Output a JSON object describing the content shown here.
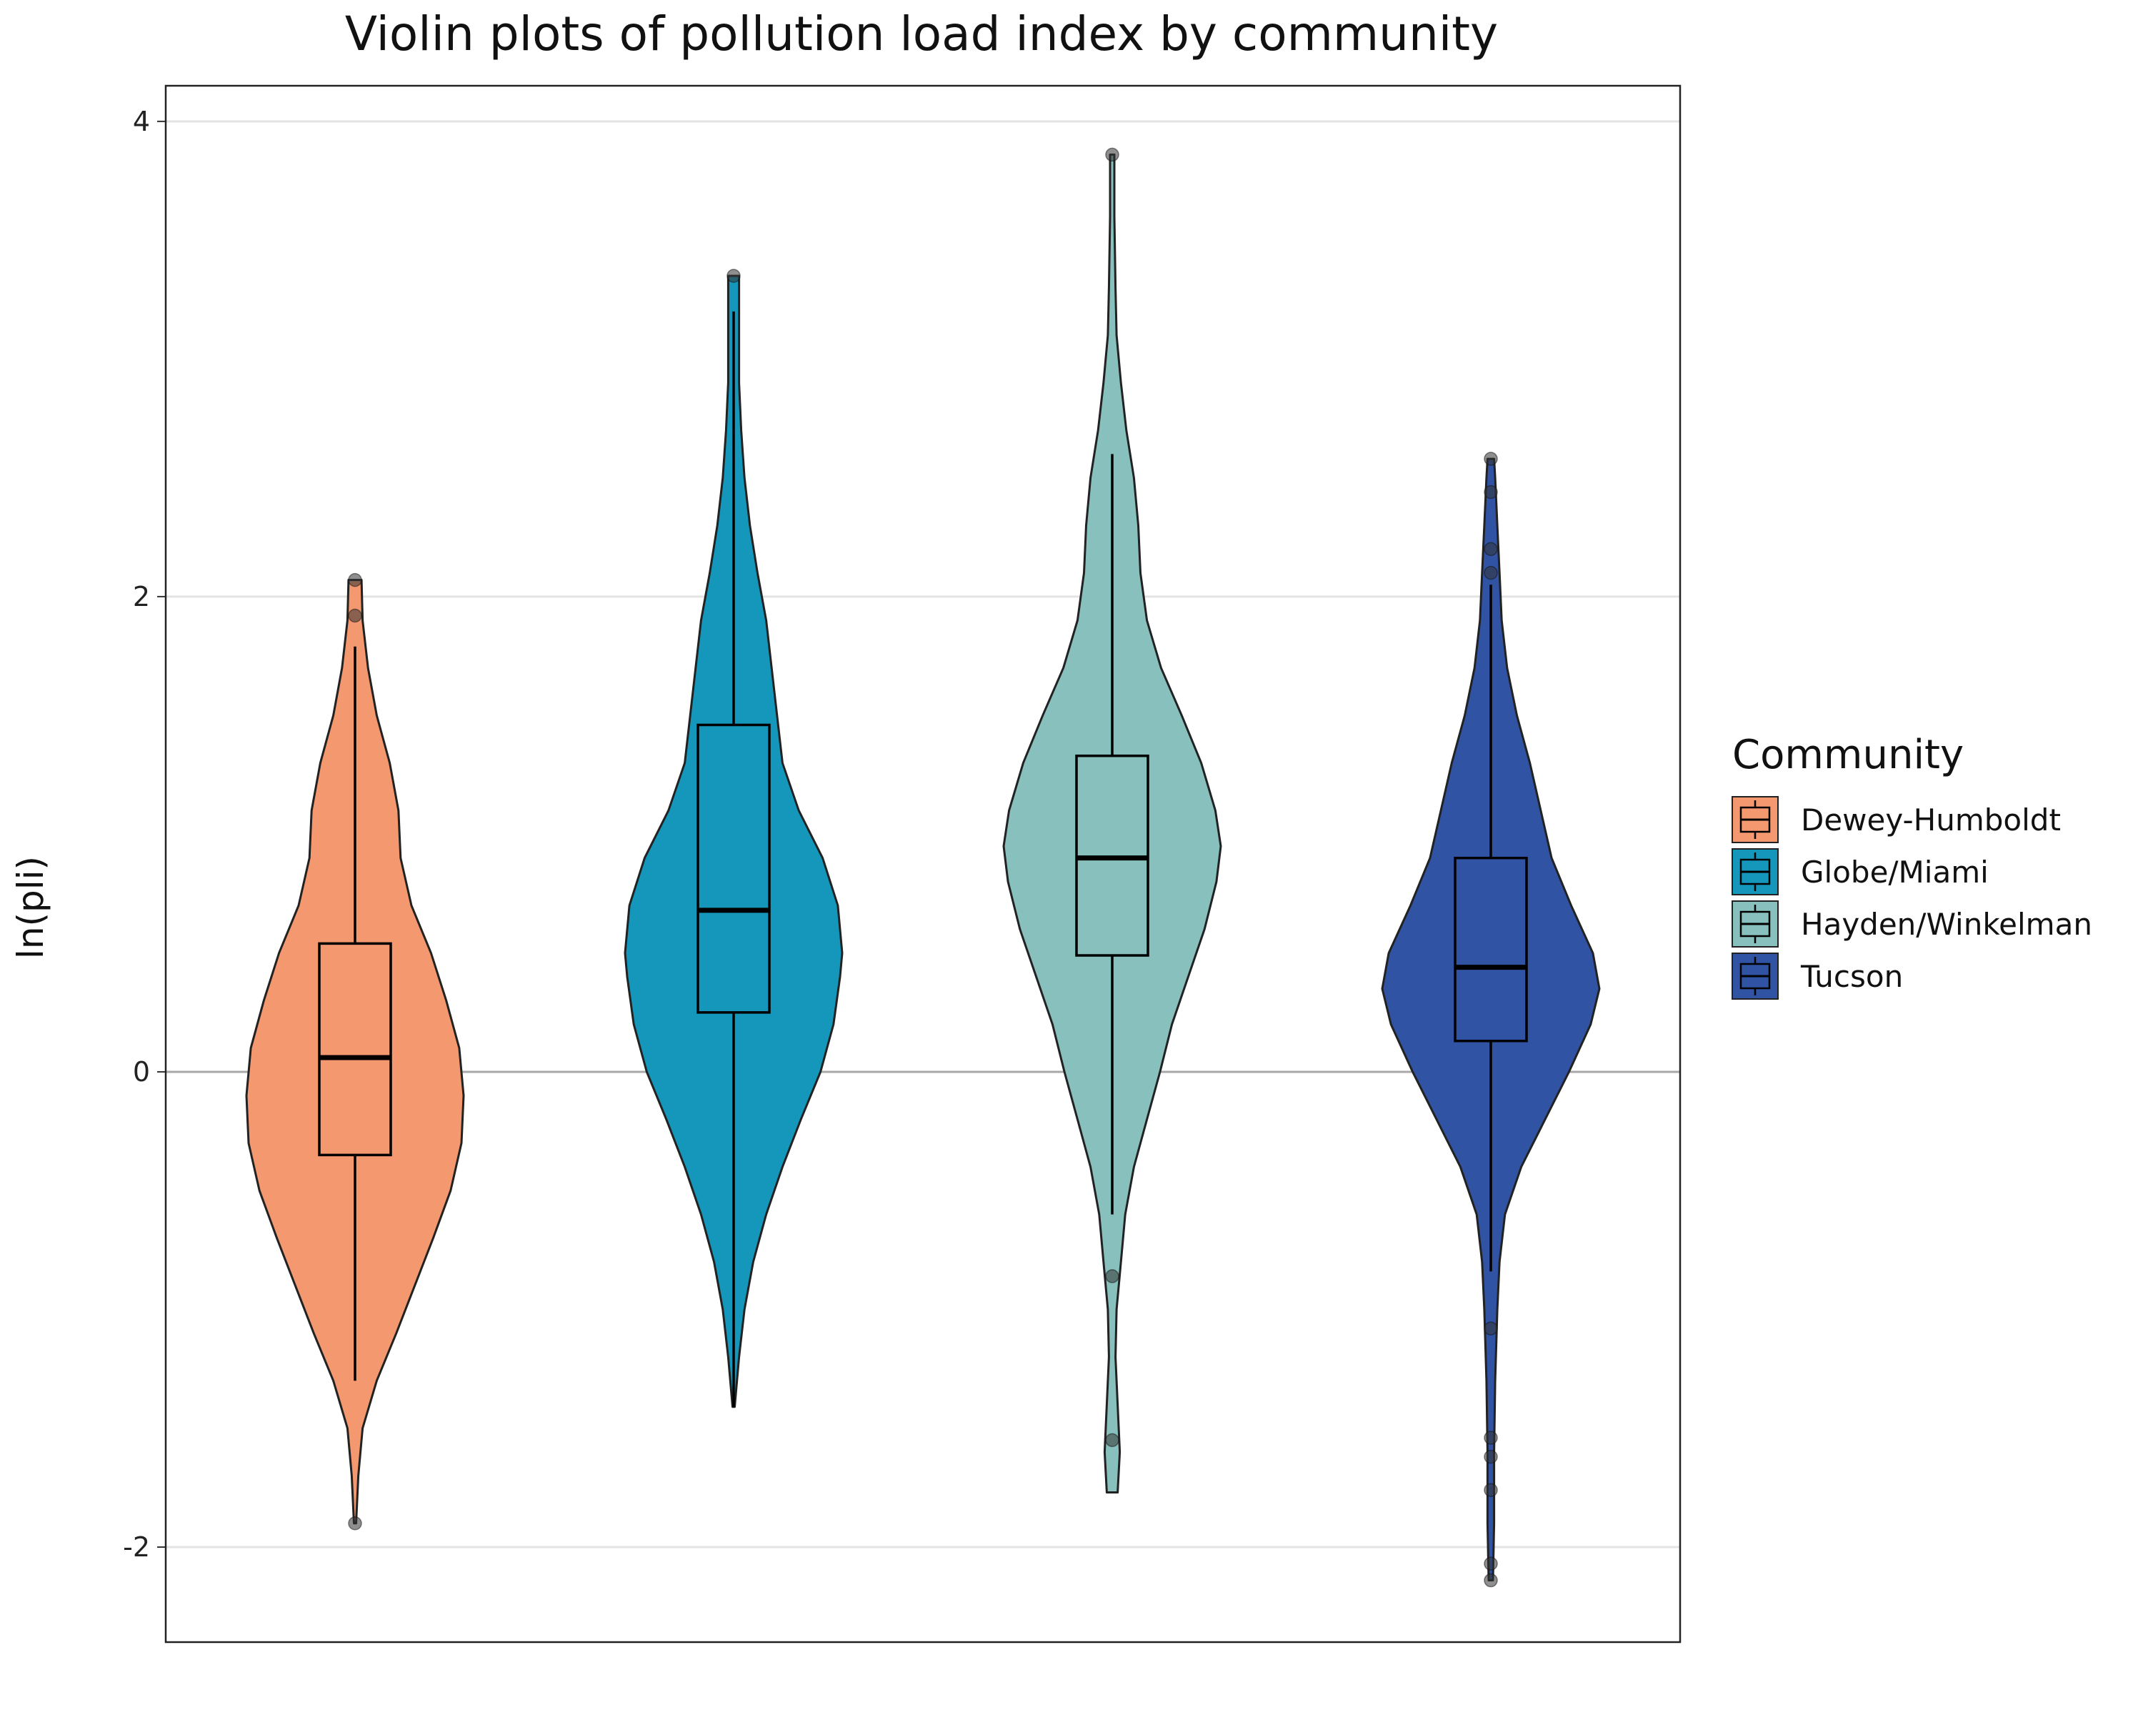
{
  "chart_data": {
    "type": "violin",
    "title": "Violin plots of pollution load index by community",
    "xlabel": "",
    "ylabel": "ln(pli)",
    "ylim": [
      -2.4,
      4.15
    ],
    "yticks": [
      -2,
      0,
      2,
      4
    ],
    "grid": true,
    "reference_line_y": 0,
    "legend": {
      "title": "Community",
      "position": "right"
    },
    "series": [
      {
        "name": "Dewey-Humboldt",
        "color": "#F4986F",
        "min": -1.9,
        "max": 2.07,
        "box": {
          "q1": -0.35,
          "median": 0.06,
          "q3": 0.54,
          "whisker_low": -1.3,
          "whisker_high": 1.79
        },
        "outliers": [
          2.07,
          1.92,
          -1.9
        ],
        "density": [
          [
            -1.9,
            0.01
          ],
          [
            -1.7,
            0.03
          ],
          [
            -1.5,
            0.07
          ],
          [
            -1.3,
            0.2
          ],
          [
            -1.1,
            0.38
          ],
          [
            -0.9,
            0.55
          ],
          [
            -0.7,
            0.72
          ],
          [
            -0.5,
            0.88
          ],
          [
            -0.3,
            0.98
          ],
          [
            -0.1,
            1.0
          ],
          [
            0.1,
            0.96
          ],
          [
            0.3,
            0.84
          ],
          [
            0.5,
            0.7
          ],
          [
            0.7,
            0.52
          ],
          [
            0.9,
            0.42
          ],
          [
            1.1,
            0.4
          ],
          [
            1.3,
            0.32
          ],
          [
            1.5,
            0.2
          ],
          [
            1.7,
            0.12
          ],
          [
            1.9,
            0.07
          ],
          [
            2.07,
            0.06
          ]
        ]
      },
      {
        "name": "Globe/Miami",
        "color": "#1597BB",
        "min": -1.41,
        "max": 3.35,
        "box": {
          "q1": 0.25,
          "median": 0.68,
          "q3": 1.46,
          "whisker_low": -1.41,
          "whisker_high": 3.2
        },
        "outliers": [
          3.35
        ],
        "density": [
          [
            -1.41,
            0.01
          ],
          [
            -1.2,
            0.05
          ],
          [
            -1.0,
            0.1
          ],
          [
            -0.8,
            0.18
          ],
          [
            -0.6,
            0.3
          ],
          [
            -0.4,
            0.45
          ],
          [
            -0.2,
            0.62
          ],
          [
            0.0,
            0.8
          ],
          [
            0.2,
            0.92
          ],
          [
            0.4,
            0.98
          ],
          [
            0.5,
            1.0
          ],
          [
            0.7,
            0.96
          ],
          [
            0.9,
            0.82
          ],
          [
            1.1,
            0.6
          ],
          [
            1.3,
            0.45
          ],
          [
            1.5,
            0.4
          ],
          [
            1.7,
            0.35
          ],
          [
            1.9,
            0.3
          ],
          [
            2.1,
            0.22
          ],
          [
            2.3,
            0.15
          ],
          [
            2.5,
            0.1
          ],
          [
            2.7,
            0.07
          ],
          [
            2.9,
            0.05
          ],
          [
            3.1,
            0.05
          ],
          [
            3.35,
            0.05
          ]
        ]
      },
      {
        "name": "Hayden/Winkelman",
        "color": "#88C0BD",
        "min": -1.77,
        "max": 3.86,
        "box": {
          "q1": 0.49,
          "median": 0.9,
          "q3": 1.33,
          "whisker_low": -0.6,
          "whisker_high": 2.6
        },
        "outliers": [
          3.86,
          -0.86,
          -1.55
        ],
        "density": [
          [
            -1.77,
            0.05
          ],
          [
            -1.6,
            0.07
          ],
          [
            -1.4,
            0.05
          ],
          [
            -1.2,
            0.03
          ],
          [
            -1.0,
            0.04
          ],
          [
            -0.8,
            0.08
          ],
          [
            -0.6,
            0.12
          ],
          [
            -0.4,
            0.2
          ],
          [
            -0.2,
            0.32
          ],
          [
            0.0,
            0.44
          ],
          [
            0.2,
            0.55
          ],
          [
            0.4,
            0.7
          ],
          [
            0.6,
            0.85
          ],
          [
            0.8,
            0.96
          ],
          [
            0.95,
            1.0
          ],
          [
            1.1,
            0.95
          ],
          [
            1.3,
            0.82
          ],
          [
            1.5,
            0.64
          ],
          [
            1.7,
            0.45
          ],
          [
            1.9,
            0.32
          ],
          [
            2.1,
            0.26
          ],
          [
            2.3,
            0.24
          ],
          [
            2.5,
            0.2
          ],
          [
            2.7,
            0.13
          ],
          [
            2.9,
            0.08
          ],
          [
            3.1,
            0.04
          ],
          [
            3.3,
            0.03
          ],
          [
            3.6,
            0.02
          ],
          [
            3.86,
            0.02
          ]
        ]
      },
      {
        "name": "Tucson",
        "color": "#3153A4",
        "min": -2.14,
        "max": 2.58,
        "box": {
          "q1": 0.13,
          "median": 0.44,
          "q3": 0.9,
          "whisker_low": -0.84,
          "whisker_high": 2.05
        },
        "outliers": [
          2.58,
          2.44,
          2.2,
          2.1,
          -1.08,
          -1.54,
          -1.62,
          -1.76,
          -2.07,
          -2.14
        ],
        "density": [
          [
            -2.14,
            0.02
          ],
          [
            -1.9,
            0.03
          ],
          [
            -1.6,
            0.03
          ],
          [
            -1.3,
            0.04
          ],
          [
            -1.0,
            0.06
          ],
          [
            -0.8,
            0.08
          ],
          [
            -0.6,
            0.13
          ],
          [
            -0.4,
            0.28
          ],
          [
            -0.2,
            0.5
          ],
          [
            0.0,
            0.72
          ],
          [
            0.2,
            0.92
          ],
          [
            0.35,
            1.0
          ],
          [
            0.5,
            0.94
          ],
          [
            0.7,
            0.74
          ],
          [
            0.9,
            0.56
          ],
          [
            1.1,
            0.46
          ],
          [
            1.3,
            0.36
          ],
          [
            1.5,
            0.24
          ],
          [
            1.7,
            0.15
          ],
          [
            1.9,
            0.1
          ],
          [
            2.1,
            0.08
          ],
          [
            2.3,
            0.06
          ],
          [
            2.5,
            0.04
          ],
          [
            2.58,
            0.03
          ]
        ]
      }
    ]
  }
}
